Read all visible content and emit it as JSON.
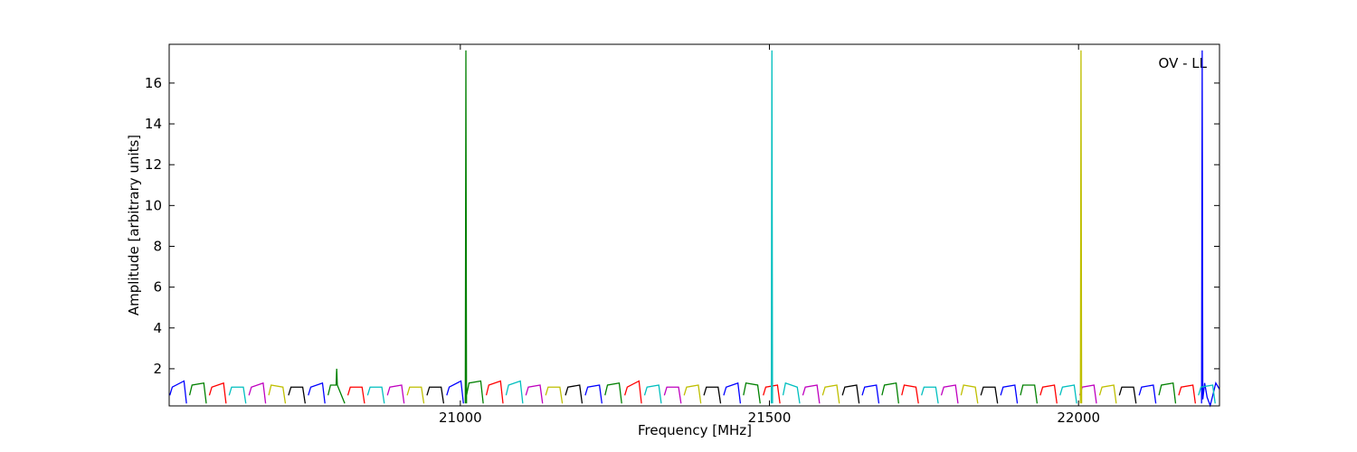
{
  "chart_data": {
    "type": "line",
    "xlabel": "Frequency [MHz]",
    "ylabel": "Amplitude [arbitrary units]",
    "annotation": "OV - LL",
    "xlim": [
      20529,
      22228
    ],
    "ylim": [
      0.18,
      17.9
    ],
    "xticks": [
      21000,
      21500,
      22000
    ],
    "yticks": [
      2,
      4,
      6,
      8,
      10,
      12,
      14,
      16
    ],
    "grid": false,
    "series": [
      {
        "color": "#0000ff",
        "x": [
          20530,
          20534,
          20553,
          20557,
          null,
          20754,
          20758,
          20777,
          20781,
          null,
          20978,
          20982,
          21001,
          21005,
          null,
          21202,
          21206,
          21225,
          21229,
          null,
          21426,
          21430,
          21449,
          21453,
          null,
          21650,
          21654,
          21673,
          21677,
          null,
          21874,
          21878,
          21897,
          21901,
          null,
          22098,
          22102,
          22121,
          22125,
          null,
          22199,
          22200,
          22201,
          22204,
          22208,
          22213,
          22218,
          22222,
          22228
        ],
        "values": [
          0.7,
          1.1,
          1.4,
          0.3,
          null,
          0.7,
          1.1,
          1.3,
          0.3,
          null,
          0.7,
          1.1,
          1.4,
          0.3,
          null,
          0.7,
          1.1,
          1.2,
          0.3,
          null,
          0.7,
          1.1,
          1.3,
          0.3,
          null,
          0.7,
          1.1,
          1.2,
          0.3,
          null,
          0.7,
          1.1,
          1.2,
          0.3,
          null,
          0.7,
          1.1,
          1.2,
          0.3,
          null,
          0.3,
          17.6,
          0.5,
          1.3,
          0.6,
          0.2,
          0.8,
          1.3,
          1.0
        ]
      },
      {
        "color": "#008000",
        "x": [
          20562,
          20566,
          20585,
          20589,
          null,
          20786,
          20790,
          20799,
          20800,
          20801,
          20813,
          null,
          21008,
          21009,
          21010,
          null,
          21010,
          21014,
          21033,
          21037,
          null,
          21234,
          21238,
          21257,
          21261,
          null,
          21458,
          21462,
          21481,
          21485,
          null,
          21682,
          21686,
          21705,
          21709,
          null,
          21906,
          21910,
          21929,
          21933,
          null,
          22130,
          22134,
          22153,
          22157
        ],
        "values": [
          0.7,
          1.2,
          1.3,
          0.3,
          null,
          0.7,
          1.2,
          1.2,
          2.0,
          1.2,
          0.3,
          null,
          0.3,
          17.6,
          0.3,
          null,
          0.7,
          1.3,
          1.4,
          0.3,
          null,
          0.7,
          1.2,
          1.3,
          0.3,
          null,
          0.7,
          1.3,
          1.2,
          0.3,
          null,
          0.7,
          1.2,
          1.3,
          0.3,
          null,
          0.7,
          1.2,
          1.2,
          0.3,
          null,
          0.7,
          1.2,
          1.3,
          0.3
        ]
      },
      {
        "color": "#ff0000",
        "x": [
          20594,
          20598,
          20617,
          20621,
          null,
          20818,
          20822,
          20841,
          20845,
          null,
          21042,
          21046,
          21065,
          21069,
          null,
          21266,
          21270,
          21289,
          21293,
          null,
          21490,
          21494,
          21513,
          21517,
          null,
          21714,
          21718,
          21737,
          21741,
          null,
          21938,
          21942,
          21961,
          21965,
          null,
          22162,
          22166,
          22185,
          22189
        ],
        "values": [
          0.7,
          1.1,
          1.3,
          0.3,
          null,
          0.7,
          1.1,
          1.1,
          0.3,
          null,
          0.7,
          1.2,
          1.4,
          0.3,
          null,
          0.7,
          1.1,
          1.4,
          0.3,
          null,
          0.7,
          1.1,
          1.2,
          0.3,
          null,
          0.7,
          1.2,
          1.1,
          0.3,
          null,
          0.7,
          1.1,
          1.2,
          0.3,
          null,
          0.7,
          1.1,
          1.2,
          0.3
        ]
      },
      {
        "color": "#00bfbf",
        "x": [
          20626,
          20630,
          20649,
          20653,
          null,
          20850,
          20854,
          20873,
          20877,
          null,
          21074,
          21078,
          21097,
          21101,
          null,
          21298,
          21302,
          21321,
          21325,
          null,
          21503,
          21504,
          21505,
          null,
          21522,
          21526,
          21545,
          21549,
          null,
          21746,
          21750,
          21769,
          21773,
          null,
          21970,
          21974,
          21993,
          21997,
          null,
          22194,
          22198,
          22217,
          22221
        ],
        "values": [
          0.7,
          1.1,
          1.1,
          0.3,
          null,
          0.7,
          1.1,
          1.1,
          0.3,
          null,
          0.7,
          1.2,
          1.4,
          0.3,
          null,
          0.7,
          1.1,
          1.2,
          0.3,
          null,
          0.3,
          17.6,
          0.3,
          null,
          0.7,
          1.3,
          1.1,
          0.3,
          null,
          0.7,
          1.1,
          1.1,
          0.3,
          null,
          0.7,
          1.1,
          1.2,
          0.3,
          null,
          0.7,
          1.1,
          1.2,
          0.3
        ]
      },
      {
        "color": "#bf00bf",
        "x": [
          20658,
          20662,
          20681,
          20685,
          null,
          20882,
          20886,
          20905,
          20909,
          null,
          21106,
          21110,
          21129,
          21133,
          null,
          21330,
          21334,
          21353,
          21357,
          null,
          21554,
          21558,
          21577,
          21581,
          null,
          21778,
          21782,
          21801,
          21805,
          null,
          22002,
          22006,
          22025,
          22029
        ],
        "values": [
          0.7,
          1.1,
          1.3,
          0.3,
          null,
          0.7,
          1.1,
          1.2,
          0.3,
          null,
          0.7,
          1.1,
          1.2,
          0.3,
          null,
          0.7,
          1.1,
          1.1,
          0.3,
          null,
          0.7,
          1.1,
          1.2,
          0.3,
          null,
          0.7,
          1.1,
          1.2,
          0.3,
          null,
          0.7,
          1.1,
          1.2,
          0.3
        ]
      },
      {
        "color": "#bfbf00",
        "x": [
          20690,
          20694,
          20713,
          20717,
          null,
          20914,
          20918,
          20937,
          20941,
          null,
          21138,
          21142,
          21161,
          21165,
          null,
          21362,
          21366,
          21385,
          21389,
          null,
          21586,
          21590,
          21609,
          21613,
          null,
          21810,
          21814,
          21833,
          21837,
          null,
          22003,
          22004,
          22005,
          null,
          22034,
          22038,
          22057,
          22061
        ],
        "values": [
          0.7,
          1.2,
          1.1,
          0.3,
          null,
          0.7,
          1.1,
          1.1,
          0.3,
          null,
          0.7,
          1.1,
          1.1,
          0.3,
          null,
          0.7,
          1.1,
          1.2,
          0.3,
          null,
          0.7,
          1.1,
          1.2,
          0.3,
          null,
          0.7,
          1.2,
          1.1,
          0.3,
          null,
          0.3,
          17.6,
          0.3,
          null,
          0.7,
          1.1,
          1.2,
          0.3
        ]
      },
      {
        "color": "#000000",
        "x": [
          20722,
          20726,
          20745,
          20749,
          null,
          20946,
          20950,
          20969,
          20973,
          null,
          21170,
          21174,
          21193,
          21197,
          null,
          21394,
          21398,
          21417,
          21421,
          null,
          21618,
          21622,
          21641,
          21645,
          null,
          21842,
          21846,
          21865,
          21869,
          null,
          22066,
          22070,
          22089,
          22093
        ],
        "values": [
          0.7,
          1.1,
          1.1,
          0.3,
          null,
          0.7,
          1.1,
          1.1,
          0.3,
          null,
          0.7,
          1.1,
          1.2,
          0.3,
          null,
          0.7,
          1.1,
          1.1,
          0.3,
          null,
          0.7,
          1.1,
          1.2,
          0.3,
          null,
          0.7,
          1.1,
          1.1,
          0.3,
          null,
          0.7,
          1.1,
          1.1,
          0.3
        ]
      }
    ]
  }
}
